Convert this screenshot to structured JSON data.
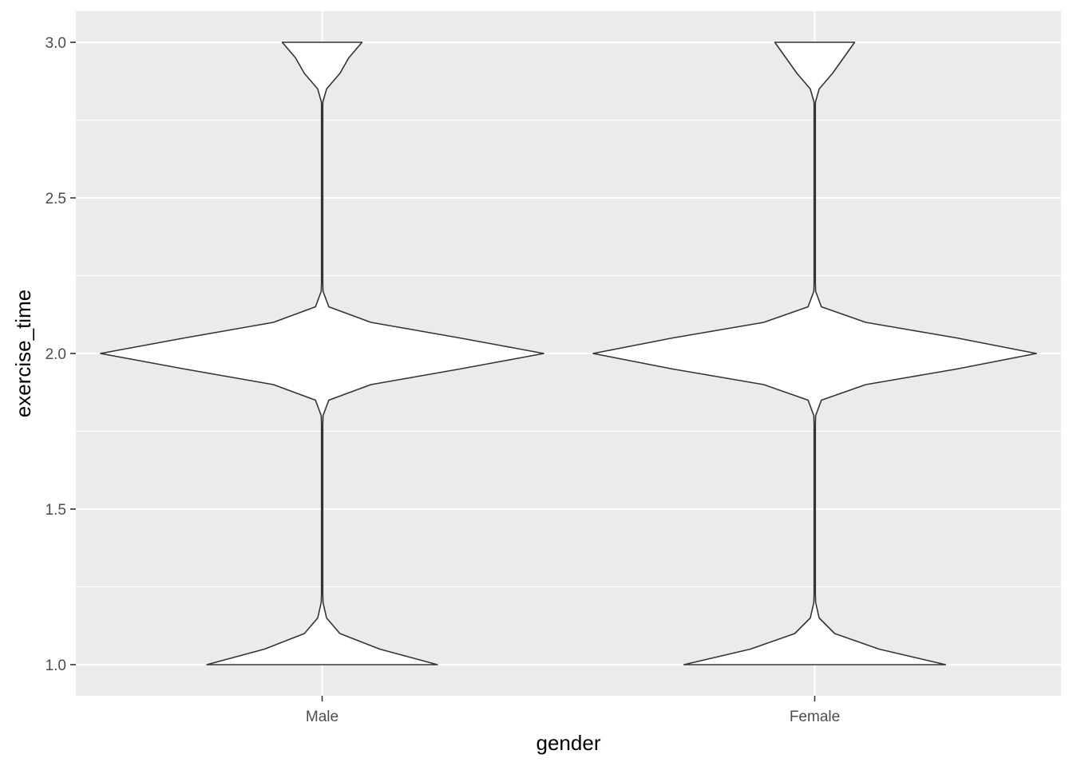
{
  "chart_data": {
    "type": "violin",
    "categories": [
      "Male",
      "Female"
    ],
    "xlabel": "gender",
    "ylabel": "exercise_time",
    "ylim": [
      0.9,
      3.1
    ],
    "y_ticks": [
      1.0,
      1.5,
      2.0,
      2.5,
      3.0
    ],
    "y_tick_labels": [
      "1.0",
      "1.5",
      "2.0",
      "2.5",
      "3.0"
    ],
    "grid": true,
    "panel_background": "#ebebeb",
    "grid_color": "#ffffff",
    "violin_fill": "#ffffff",
    "violin_outline": "#333333",
    "violins": [
      {
        "category": "Male",
        "density_profile": [
          [
            1.0,
            0.52
          ],
          [
            1.05,
            0.26
          ],
          [
            1.1,
            0.08
          ],
          [
            1.15,
            0.02
          ],
          [
            1.2,
            0.004
          ],
          [
            1.3,
            0.0
          ],
          [
            1.7,
            0.0
          ],
          [
            1.8,
            0.004
          ],
          [
            1.85,
            0.03
          ],
          [
            1.9,
            0.22
          ],
          [
            1.95,
            0.62
          ],
          [
            2.0,
            1.0
          ],
          [
            2.05,
            0.62
          ],
          [
            2.1,
            0.22
          ],
          [
            2.15,
            0.03
          ],
          [
            2.2,
            0.004
          ],
          [
            2.3,
            0.0
          ],
          [
            2.8,
            0.0
          ],
          [
            2.85,
            0.02
          ],
          [
            2.9,
            0.08
          ],
          [
            2.95,
            0.12
          ],
          [
            3.0,
            0.18
          ]
        ]
      },
      {
        "category": "Female",
        "density_profile": [
          [
            1.0,
            0.59
          ],
          [
            1.05,
            0.29
          ],
          [
            1.1,
            0.09
          ],
          [
            1.15,
            0.02
          ],
          [
            1.2,
            0.004
          ],
          [
            1.3,
            0.0
          ],
          [
            1.7,
            0.0
          ],
          [
            1.8,
            0.004
          ],
          [
            1.85,
            0.03
          ],
          [
            1.9,
            0.23
          ],
          [
            1.95,
            0.64
          ],
          [
            2.0,
            1.0
          ],
          [
            2.05,
            0.64
          ],
          [
            2.1,
            0.23
          ],
          [
            2.15,
            0.03
          ],
          [
            2.2,
            0.004
          ],
          [
            2.3,
            0.0
          ],
          [
            2.8,
            0.0
          ],
          [
            2.85,
            0.02
          ],
          [
            2.9,
            0.08
          ],
          [
            2.95,
            0.13
          ],
          [
            3.0,
            0.18
          ]
        ]
      }
    ]
  }
}
